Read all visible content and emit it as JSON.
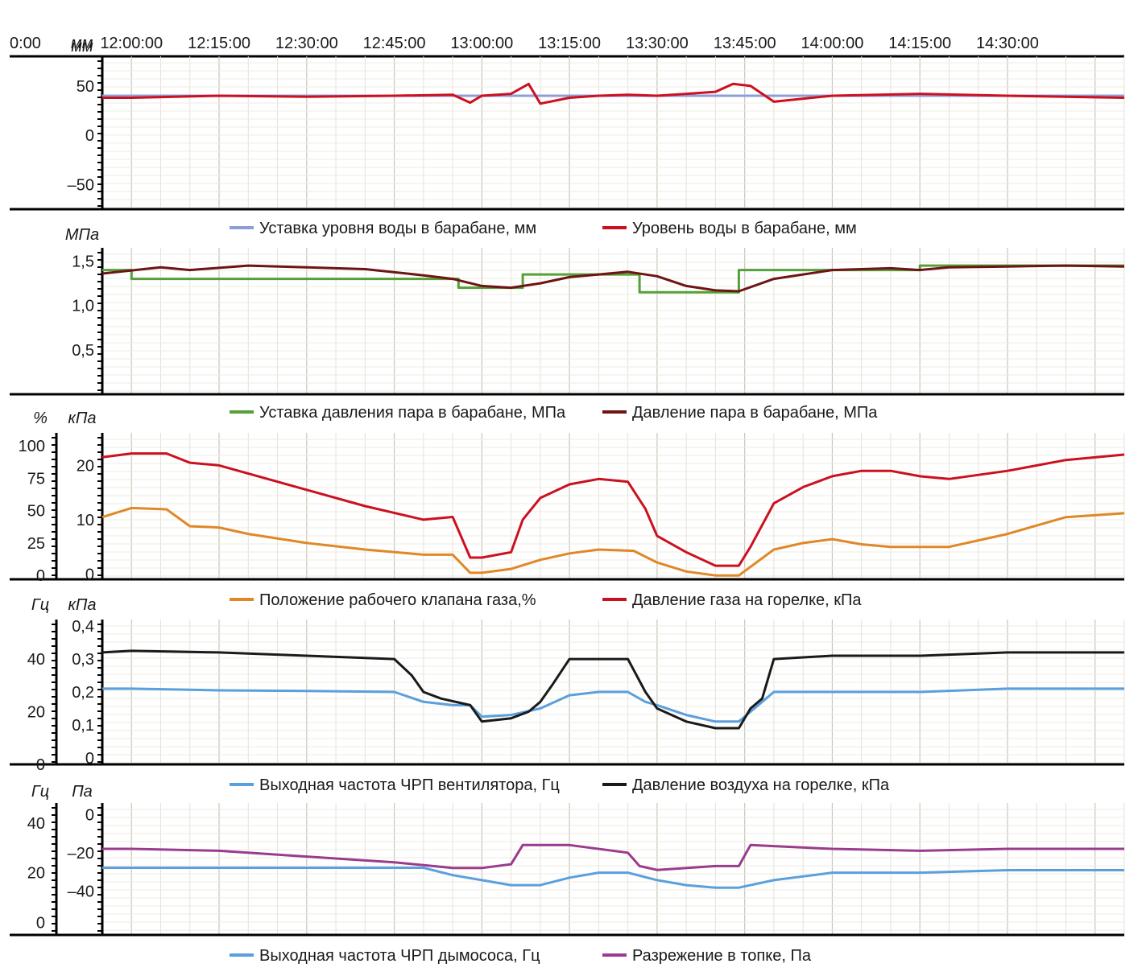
{
  "time_axis": {
    "left_label": "0:00",
    "unit": "мм",
    "ticks": [
      "12:00:00",
      "12:15:00",
      "12:30:00",
      "12:45:00",
      "13:00:00",
      "13:15:00",
      "13:30:00",
      "13:45:00",
      "14:00:00",
      "14:15:00",
      "14:30:00"
    ]
  },
  "chart_data": [
    {
      "type": "line",
      "panel": "water-level",
      "y_units": [
        "мм"
      ],
      "ylim": [
        -75,
        80
      ],
      "yticks": [
        "50",
        "0",
        "–50"
      ],
      "ytick_values": [
        50,
        0,
        -50
      ],
      "grid": true,
      "legend_position": "bottom",
      "series": [
        {
          "name": "Уставка уровня воды в барабане, мм",
          "color": "#8e9fd6",
          "x": [
            "11:55",
            "14:50"
          ],
          "y": [
            40,
            40
          ]
        },
        {
          "name": "Уровень воды в барабане, мм",
          "color": "#cc1020",
          "x": [
            "11:55",
            "12:00",
            "12:15",
            "12:30",
            "12:45",
            "12:55",
            "12:58",
            "13:00",
            "13:05",
            "13:08",
            "13:10",
            "13:15",
            "13:20",
            "13:25",
            "13:30",
            "13:35",
            "13:40",
            "13:43",
            "13:46",
            "13:50",
            "14:00",
            "14:15",
            "14:30",
            "14:50"
          ],
          "y": [
            38,
            38,
            40,
            39,
            40,
            41,
            33,
            40,
            42,
            52,
            32,
            38,
            40,
            41,
            40,
            42,
            44,
            52,
            50,
            34,
            40,
            42,
            40,
            38
          ]
        }
      ]
    },
    {
      "type": "line",
      "panel": "steam-pressure",
      "y_units": [
        "МПа"
      ],
      "ylim": [
        0,
        1.65
      ],
      "yticks": [
        "1,5",
        "1,0",
        "0,5"
      ],
      "ytick_values": [
        1.5,
        1.0,
        0.5
      ],
      "grid": true,
      "legend_position": "bottom",
      "series": [
        {
          "name": "Уставка давления пара в барабане, МПа",
          "color": "#55a038",
          "step": true,
          "x": [
            "11:55",
            "12:00",
            "12:56",
            "13:07",
            "13:27",
            "13:44",
            "14:15",
            "14:50"
          ],
          "y": [
            1.4,
            1.3,
            1.2,
            1.35,
            1.15,
            1.4,
            1.45,
            1.45
          ]
        },
        {
          "name": "Давление пара в барабане, МПа",
          "color": "#6e1414",
          "x": [
            "11:55",
            "12:05",
            "12:10",
            "12:20",
            "12:30",
            "12:40",
            "12:50",
            "12:55",
            "13:00",
            "13:05",
            "13:10",
            "13:15",
            "13:20",
            "13:25",
            "13:30",
            "13:35",
            "13:40",
            "13:44",
            "13:50",
            "14:00",
            "14:10",
            "14:15",
            "14:20",
            "14:30",
            "14:40",
            "14:50"
          ],
          "y": [
            1.36,
            1.43,
            1.4,
            1.45,
            1.43,
            1.41,
            1.34,
            1.3,
            1.22,
            1.2,
            1.25,
            1.32,
            1.35,
            1.38,
            1.33,
            1.22,
            1.17,
            1.16,
            1.3,
            1.4,
            1.42,
            1.4,
            1.43,
            1.44,
            1.45,
            1.44
          ]
        }
      ]
    },
    {
      "type": "line",
      "panel": "gas",
      "y_units": [
        "%",
        "кПа"
      ],
      "ylim_left": [
        -3,
        110
      ],
      "yticks_left": [
        "100",
        "75",
        "50",
        "25",
        "0"
      ],
      "ytick_values_left": [
        100,
        75,
        50,
        25,
        0
      ],
      "ylim_right": [
        -1,
        26
      ],
      "yticks_right": [
        "20",
        "10",
        "0"
      ],
      "ytick_values_right": [
        20,
        10,
        0
      ],
      "grid": true,
      "legend_position": "bottom",
      "series": [
        {
          "name": "Положение рабочего клапана газа,%",
          "color": "#e08828",
          "axis": "left",
          "x": [
            "11:55",
            "12:00",
            "12:06",
            "12:10",
            "12:15",
            "12:20",
            "12:30",
            "12:40",
            "12:50",
            "12:55",
            "12:58",
            "13:00",
            "13:05",
            "13:10",
            "13:15",
            "13:20",
            "13:26",
            "13:30",
            "13:35",
            "13:40",
            "13:44",
            "13:50",
            "13:55",
            "14:00",
            "14:05",
            "14:10",
            "14:15",
            "14:20",
            "14:30",
            "14:40",
            "14:50"
          ],
          "y": [
            45,
            52,
            51,
            38,
            37,
            32,
            25,
            20,
            16,
            16,
            2,
            2,
            5,
            12,
            17,
            20,
            19,
            10,
            3,
            0,
            0,
            20,
            25,
            28,
            24,
            22,
            22,
            22,
            32,
            45,
            48
          ]
        },
        {
          "name": "Давление газа на горелке, кПа",
          "color": "#cc1020",
          "axis": "right",
          "x": [
            "11:55",
            "12:00",
            "12:06",
            "12:10",
            "12:15",
            "12:20",
            "12:30",
            "12:40",
            "12:50",
            "12:55",
            "12:58",
            "13:00",
            "13:05",
            "13:07",
            "13:10",
            "13:15",
            "13:20",
            "13:25",
            "13:28",
            "13:30",
            "13:35",
            "13:40",
            "13:44",
            "13:46",
            "13:50",
            "13:55",
            "14:00",
            "14:05",
            "14:10",
            "14:15",
            "14:20",
            "14:30",
            "14:40",
            "14:50"
          ],
          "y": [
            21.5,
            22.2,
            22.2,
            20.5,
            20,
            18.5,
            15.5,
            12.5,
            10,
            10.5,
            3,
            3,
            4,
            10,
            14,
            16.5,
            17.5,
            17,
            12,
            7,
            4,
            1.5,
            1.5,
            5,
            13,
            16,
            18,
            19,
            19,
            18,
            17.5,
            19,
            21,
            22
          ]
        }
      ]
    },
    {
      "type": "line",
      "panel": "air",
      "y_units": [
        "Гц",
        "кПа"
      ],
      "ylim_left": [
        0,
        55
      ],
      "yticks_left": [
        "40",
        "20",
        "0"
      ],
      "ytick_values_left": [
        40,
        20,
        0
      ],
      "ylim_right": [
        -0.02,
        0.42
      ],
      "yticks_right": [
        "0,4",
        "0,3",
        "0,2",
        "0,1",
        "0"
      ],
      "ytick_values_right": [
        0.4,
        0.3,
        0.2,
        0.1,
        0
      ],
      "grid": true,
      "legend_position": "bottom",
      "series": [
        {
          "name": "Выходная частота ЧРП вентилятора, Гц",
          "color": "#5aa0dc",
          "axis": "right",
          "x": [
            "11:55",
            "12:00",
            "12:15",
            "12:30",
            "12:45",
            "12:50",
            "12:55",
            "12:58",
            "13:00",
            "13:05",
            "13:10",
            "13:15",
            "13:20",
            "13:25",
            "13:28",
            "13:30",
            "13:35",
            "13:40",
            "13:44",
            "13:48",
            "13:50",
            "14:00",
            "14:15",
            "14:30",
            "14:50"
          ],
          "y": [
            0.21,
            0.21,
            0.205,
            0.203,
            0.2,
            0.17,
            0.16,
            0.16,
            0.125,
            0.13,
            0.15,
            0.19,
            0.2,
            0.2,
            0.17,
            0.16,
            0.13,
            0.11,
            0.11,
            0.17,
            0.2,
            0.2,
            0.2,
            0.21,
            0.21
          ]
        },
        {
          "name": "Давление воздуха на горелке, кПа",
          "color": "#1a1a1a",
          "axis": "right",
          "x": [
            "11:55",
            "12:00",
            "12:15",
            "12:30",
            "12:45",
            "12:48",
            "12:50",
            "12:53",
            "12:58",
            "13:00",
            "13:05",
            "13:08",
            "13:10",
            "13:12",
            "13:15",
            "13:20",
            "13:25",
            "13:28",
            "13:30",
            "13:35",
            "13:40",
            "13:44",
            "13:46",
            "13:48",
            "13:50",
            "14:00",
            "14:15",
            "14:30",
            "14:50"
          ],
          "y": [
            0.32,
            0.325,
            0.32,
            0.31,
            0.3,
            0.25,
            0.2,
            0.18,
            0.16,
            0.11,
            0.12,
            0.14,
            0.17,
            0.22,
            0.3,
            0.3,
            0.3,
            0.2,
            0.15,
            0.11,
            0.09,
            0.09,
            0.15,
            0.18,
            0.3,
            0.31,
            0.31,
            0.32,
            0.32
          ]
        }
      ]
    },
    {
      "type": "line",
      "panel": "exhaust",
      "y_units": [
        "Гц",
        "Па"
      ],
      "ylim_left": [
        -5,
        48
      ],
      "yticks_left": [
        "40",
        "20",
        "0"
      ],
      "ytick_values_left": [
        40,
        20,
        0
      ],
      "ylim_right": [
        -63,
        6
      ],
      "yticks_right": [
        "0",
        "–20",
        "–40"
      ],
      "ytick_values_right": [
        0,
        -20,
        -40
      ],
      "grid": true,
      "legend_position": "bottom",
      "series": [
        {
          "name": "Выходная частота ЧРП дымососа, Гц",
          "color": "#5aa0dc",
          "axis": "left",
          "x": [
            "11:55",
            "12:00",
            "12:50",
            "12:55",
            "13:00",
            "13:05",
            "13:10",
            "13:15",
            "13:20",
            "13:25",
            "13:30",
            "13:35",
            "13:40",
            "13:44",
            "13:50",
            "14:00",
            "14:15",
            "14:30",
            "14:50"
          ],
          "y": [
            22,
            22,
            22,
            19,
            17,
            15,
            15,
            18,
            20,
            20,
            17,
            15,
            14,
            14,
            17,
            20,
            20,
            21,
            21
          ]
        },
        {
          "name": "Разрежение в топке, Па",
          "color": "#9a3c8e",
          "axis": "right",
          "x": [
            "11:55",
            "12:00",
            "12:15",
            "12:30",
            "12:45",
            "12:55",
            "13:00",
            "13:05",
            "13:07",
            "13:15",
            "13:25",
            "13:27",
            "13:30",
            "13:40",
            "13:44",
            "13:46",
            "14:00",
            "14:15",
            "14:30",
            "14:50"
          ],
          "y": [
            -18,
            -18,
            -19,
            -22,
            -25,
            -28,
            -28,
            -26,
            -16,
            -16,
            -20,
            -27,
            -29,
            -27,
            -27,
            -16,
            -18,
            -19,
            -18,
            -18
          ]
        }
      ]
    }
  ]
}
